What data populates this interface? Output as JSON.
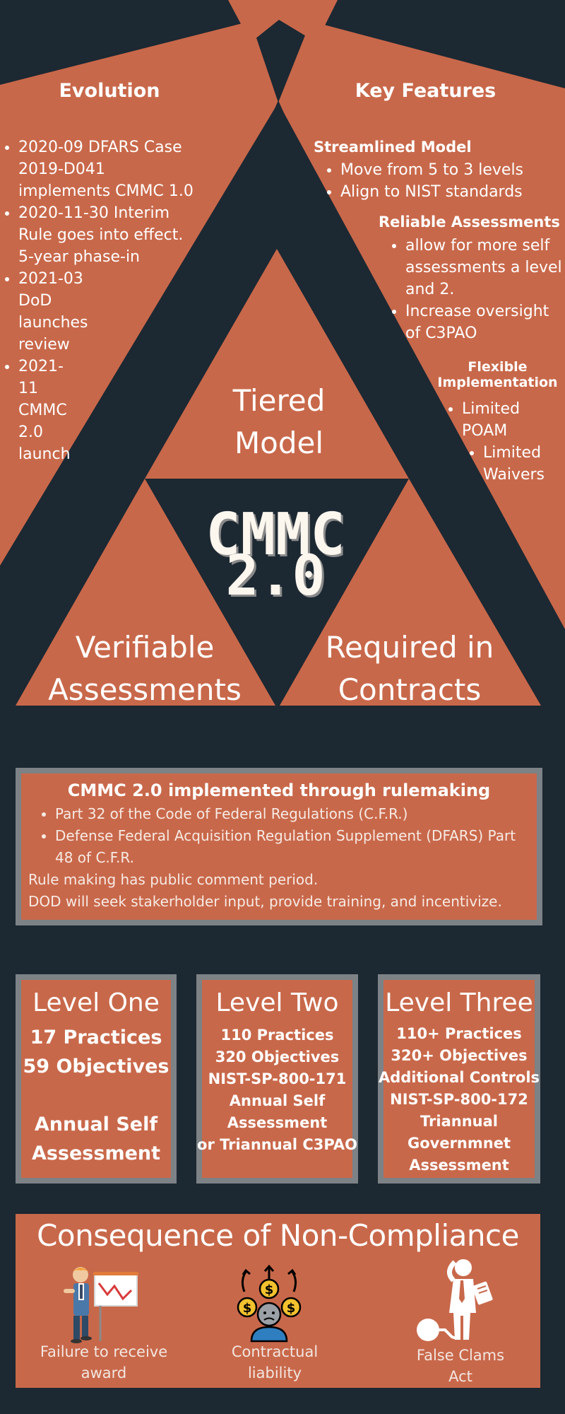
{
  "evolution": {
    "heading": "Evolution",
    "items": [
      "2020-09  DFARS Case 2019-D041 implements CMMC 1.0",
      "2020-11-30 Interim Rule goes into effect. 5-year  phase-in",
      "2021-03 DoD launches review",
      "2021-11 CMMC 2.0 launch"
    ]
  },
  "key_features": {
    "heading": "Key Features",
    "streamlined": {
      "title": "Streamlined Model",
      "items": [
        "Move from 5 to 3 levels",
        "Align to NIST standards"
      ]
    },
    "reliable": {
      "title": "Reliable Assessments",
      "items": [
        "allow for more self assessments a level  and 2.",
        "Increase oversight of C3PAO"
      ]
    },
    "flexible": {
      "title": "Flexible Implementation",
      "items": [
        "Limited POAM",
        "Limited Waivers"
      ]
    }
  },
  "triangle": {
    "top": "Tiered Model",
    "center_line1": "CMMC",
    "center_line2": "2.0",
    "left": "Verifiable Assessments",
    "right": "Required in Contracts"
  },
  "rulemaking": {
    "title": "CMMC 2.0 implemented through rulemaking",
    "items": [
      "Part 32 of the Code of Federal Regulations (C.F.R.)",
      " Defense Federal Acquisition Regulation Supplement (DFARS) Part 48 of C.F.R."
    ],
    "line1": "Rule making has public comment period.",
    "line2": "DOD will seek stakerholder input, provide training, and incentivize."
  },
  "levels": [
    {
      "title": "Level One",
      "lines": [
        "17 Practices",
        "59 Objectives",
        "",
        "Annual Self",
        "Assessment"
      ]
    },
    {
      "title": "Level Two",
      "lines": [
        "110 Practices",
        "320 Objectives",
        "NIST-SP-800-171",
        "Annual Self",
        "Assessment",
        "or Triannual C3PAO"
      ]
    },
    {
      "title": "Level Three",
      "lines": [
        "110+ Practices",
        "320+ Objectives",
        "Additional Controls",
        "NIST-SP-800-172",
        "Triannual",
        "Governmnet",
        "Assessment"
      ]
    }
  ],
  "consequence": {
    "title": "Consequence of Non-Compliance",
    "items": [
      {
        "label_line1": "Failure to receive",
        "label_line2": "award",
        "icon": "failed-business-icon"
      },
      {
        "label_line1": "Contractual",
        "label_line2": "liability",
        "icon": "money-stress-icon"
      },
      {
        "label_line1": "False Clams",
        "label_line2": "Act",
        "icon": "ball-and-chain-icon"
      }
    ]
  },
  "colors": {
    "background": "#1c2832",
    "accent": "#c8684a",
    "border": "#7c8286",
    "title_text": "#fbf6ee"
  }
}
